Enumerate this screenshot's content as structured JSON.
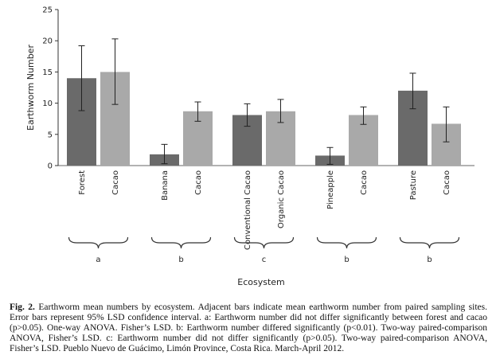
{
  "chart_data": {
    "type": "bar",
    "ylabel": "Earthworm Number",
    "xlabel": "Ecosystem",
    "ylim": [
      0,
      25
    ],
    "yticks": [
      0,
      5,
      10,
      15,
      20,
      25
    ],
    "grid": false,
    "colors": {
      "dark": "#6a6a6a",
      "light": "#a9a9a9",
      "error": "#222222"
    },
    "bars": [
      {
        "category": "Forest",
        "value": 14.0,
        "err_low": 8.8,
        "err_high": 19.2,
        "shade": "dark"
      },
      {
        "category": "Cacao",
        "value": 15.0,
        "err_low": 9.8,
        "err_high": 20.3,
        "shade": "light"
      },
      {
        "category": "Banana",
        "value": 1.8,
        "err_low": 0.3,
        "err_high": 3.4,
        "shade": "dark"
      },
      {
        "category": "Cacao",
        "value": 8.7,
        "err_low": 7.1,
        "err_high": 10.2,
        "shade": "light"
      },
      {
        "category": "Conventional Cacao",
        "value": 8.1,
        "err_low": 6.3,
        "err_high": 9.9,
        "shade": "dark"
      },
      {
        "category": "Organic Cacao",
        "value": 8.7,
        "err_low": 6.9,
        "err_high": 10.6,
        "shade": "light"
      },
      {
        "category": "Pineapple",
        "value": 1.6,
        "err_low": 0.2,
        "err_high": 2.9,
        "shade": "dark"
      },
      {
        "category": "Cacao",
        "value": 8.1,
        "err_low": 6.6,
        "err_high": 9.4,
        "shade": "light"
      },
      {
        "category": "Pasture",
        "value": 12.0,
        "err_low": 9.1,
        "err_high": 14.8,
        "shade": "dark"
      },
      {
        "category": "Cacao",
        "value": 6.7,
        "err_low": 3.8,
        "err_high": 9.4,
        "shade": "light"
      }
    ],
    "groups": [
      "a",
      "b",
      "c",
      "b",
      "b"
    ]
  },
  "caption": {
    "label": "Fig. 2.",
    "text": "Earthworm mean numbers by ecosystem. Adjacent bars indicate mean earthworm number from paired sampling sites. Error bars represent 95% LSD confidence interval. a: Earthworm number did not differ significantly between forest and cacao (p>0.05). One-way ANOVA. Fisher’s LSD. b: Earthworm number differed significantly (p<0.01). Two-way paired-comparison ANOVA, Fisher’s LSD. c: Earthworm number did not differ significantly (p>0.05). Two-way paired-comparison ANOVA, Fisher’s LSD. Pueblo Nuevo de Guácimo, Limón Province, Costa Rica. March-April 2012."
  }
}
